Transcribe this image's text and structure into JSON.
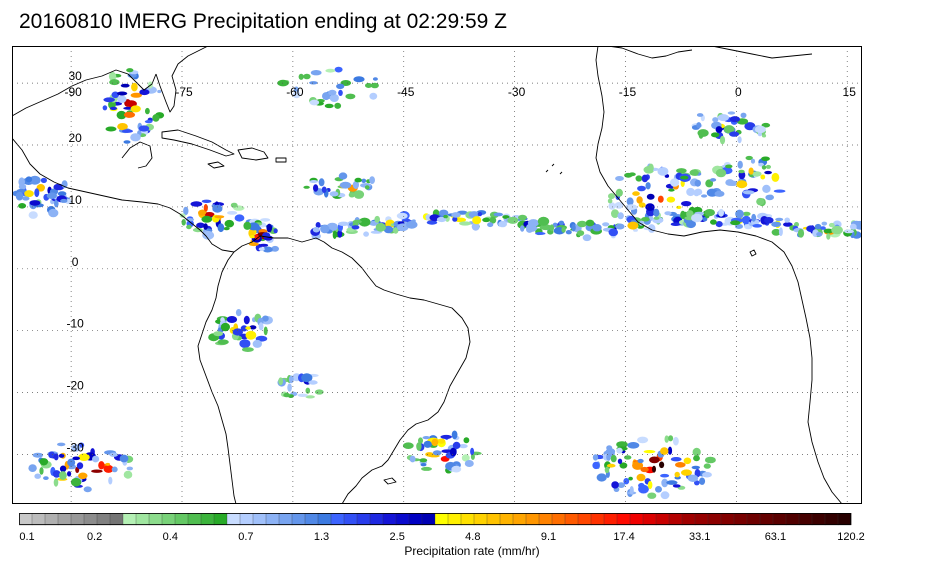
{
  "title": "20160810 IMERG Precipitation ending at 02:29:59 Z",
  "map": {
    "lon_range": [
      -98,
      17
    ],
    "lat_range": [
      -38,
      36
    ],
    "lon_labels": [
      "-90",
      "-75",
      "-60",
      "-45",
      "-30",
      "-15",
      "0",
      "15"
    ],
    "lon_values": [
      -90,
      -75,
      -60,
      -45,
      -30,
      -15,
      0,
      15
    ],
    "lat_labels": [
      "30",
      "20",
      "10",
      "0",
      "-10",
      "-20",
      "-30"
    ],
    "lat_values": [
      30,
      20,
      10,
      0,
      -10,
      -20,
      -30
    ],
    "grid": "dotted"
  },
  "colorbar": {
    "caption": "Precipitation rate (mm/hr)",
    "tick_labels": [
      "0.1",
      "0.2",
      "0.4",
      "0.7",
      "1.3",
      "2.5",
      "4.8",
      "9.1",
      "17.4",
      "33.1",
      "63.1",
      "120.2"
    ],
    "colors": [
      "#c8c8c8",
      "#bcbcbc",
      "#b0b0b0",
      "#a4a4a4",
      "#989898",
      "#8c8c8c",
      "#808080",
      "#747474",
      "#b4f0b4",
      "#a0e6a0",
      "#8cdc8c",
      "#78d278",
      "#64c864",
      "#50be50",
      "#3cb43c",
      "#28aa28",
      "#c8dcff",
      "#b4ceff",
      "#a0c0fa",
      "#8cb2f5",
      "#78a4f0",
      "#6496eb",
      "#5088e6",
      "#3c7ae1",
      "#3c64ff",
      "#3250f5",
      "#283ceb",
      "#1e28e1",
      "#1414d7",
      "#0a0acd",
      "#0000c3",
      "#0000b4",
      "#ffff00",
      "#fff000",
      "#ffe100",
      "#ffd200",
      "#ffc300",
      "#ffb400",
      "#ffa500",
      "#ff9600",
      "#ff8200",
      "#ff6e00",
      "#ff5a00",
      "#ff4600",
      "#ff3200",
      "#ff1e00",
      "#ff0a00",
      "#f00000",
      "#dc0000",
      "#c80000",
      "#b40000",
      "#a00000",
      "#960000",
      "#8c0000",
      "#820000",
      "#780000",
      "#6e0000",
      "#640000",
      "#5a0000",
      "#500000",
      "#460000",
      "#3c0000",
      "#320000",
      "#280000"
    ]
  }
}
